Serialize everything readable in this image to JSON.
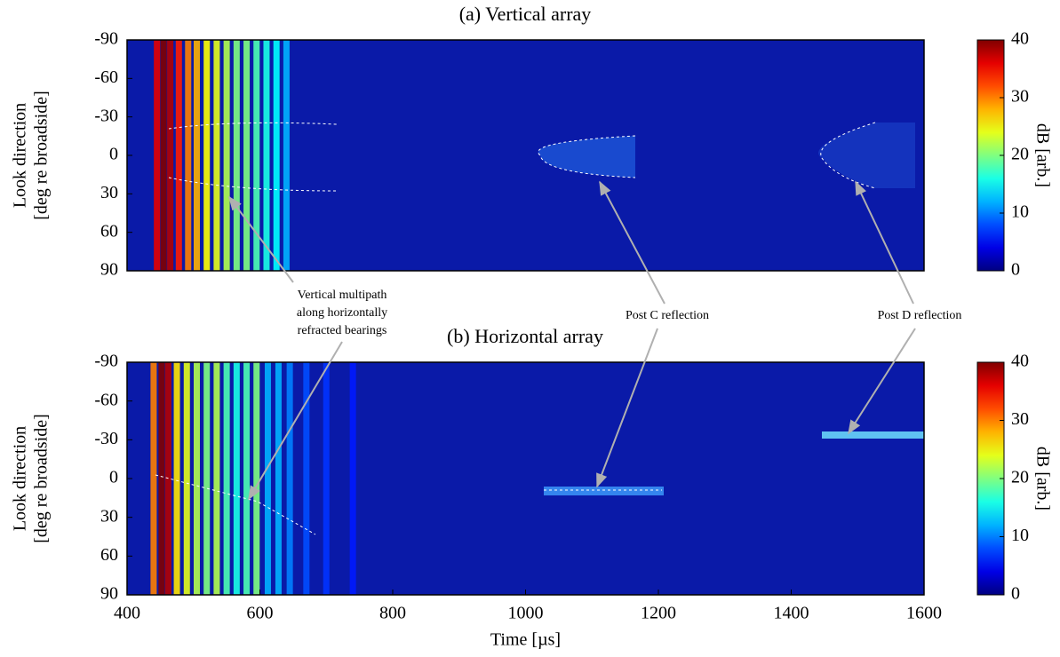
{
  "chart_data": [
    {
      "type": "heatmap",
      "title": "(a) Vertical array",
      "ylabel": [
        "Look direction",
        "[deg re broadside]"
      ],
      "xlim": [
        400,
        1600
      ],
      "ylim": [
        90,
        -90
      ],
      "yticks": [
        -90,
        -60,
        -30,
        0,
        30,
        60,
        90
      ],
      "x": [
        445,
        455,
        465,
        478,
        492,
        505,
        520,
        535,
        550,
        565,
        580,
        595,
        610,
        625,
        640
      ],
      "values": [
        36,
        40,
        38,
        34,
        30,
        28,
        25,
        24,
        22,
        20,
        20,
        18,
        16,
        15,
        12
      ],
      "clim": [
        0,
        40
      ],
      "cticks": [
        0,
        10,
        20,
        30,
        40
      ],
      "clabel": "dB [arb.]"
    },
    {
      "type": "heatmap",
      "title": "(b) Horizontal array",
      "ylabel": [
        "Look direction",
        "[deg re broadside]"
      ],
      "xlabel": "Time [µs]",
      "xlim": [
        400,
        1600
      ],
      "xticks": [
        400,
        600,
        800,
        1000,
        1200,
        1400,
        1600
      ],
      "ylim": [
        90,
        -90
      ],
      "yticks": [
        -90,
        -60,
        -30,
        0,
        30,
        60,
        90
      ],
      "x": [
        440,
        452,
        462,
        475,
        490,
        505,
        520,
        535,
        550,
        565,
        580,
        595,
        612,
        628,
        645,
        670,
        700,
        740
      ],
      "values": [
        30,
        40,
        38,
        26,
        24,
        22,
        20,
        22,
        18,
        16,
        18,
        20,
        12,
        12,
        10,
        8,
        7,
        6
      ],
      "clim": [
        0,
        40
      ],
      "cticks": [
        0,
        10,
        20,
        30,
        40
      ],
      "clabel": "dB [arb.]"
    }
  ],
  "annotations": [
    [
      "Vertical multipath",
      "along horizontally",
      "refracted bearings"
    ],
    [
      "Post C reflection"
    ],
    [
      "Post D reflection"
    ]
  ]
}
